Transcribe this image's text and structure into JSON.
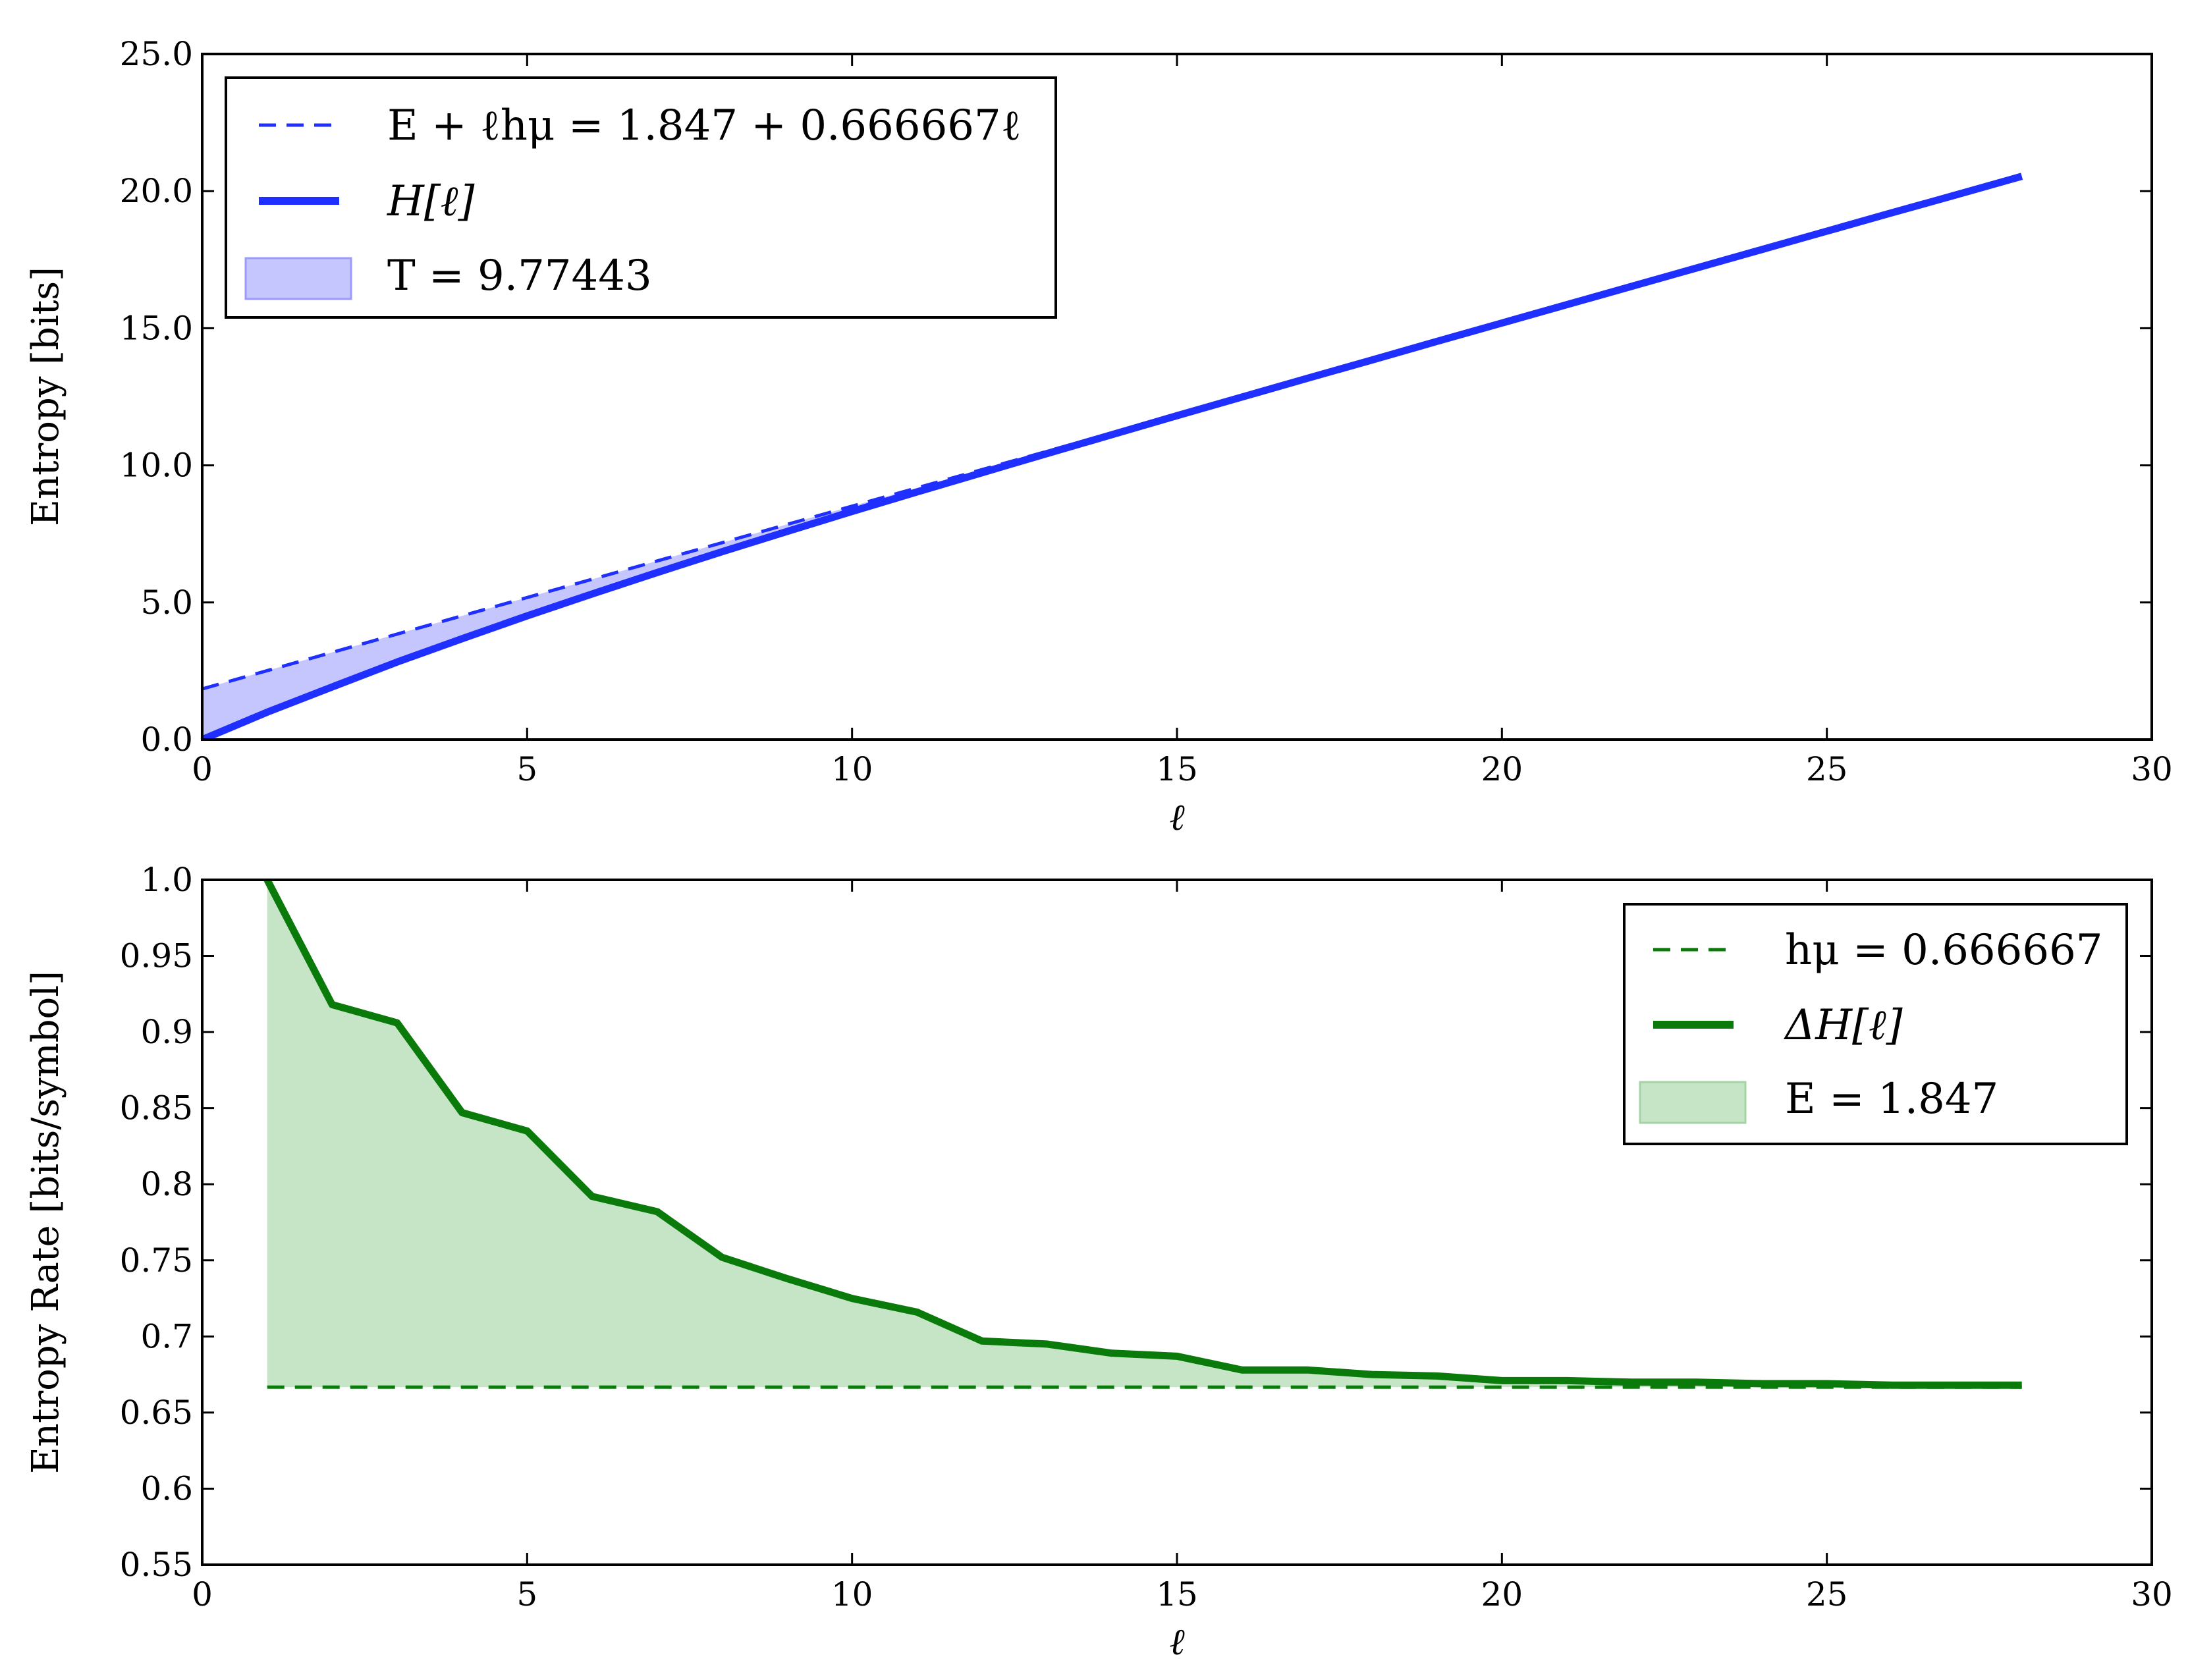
{
  "chart_data": [
    {
      "type": "line",
      "xlabel": "ℓ",
      "ylabel": "Entropy [bits]",
      "xlim": [
        0,
        30
      ],
      "ylim": [
        0,
        25
      ],
      "xticks": [
        0,
        5,
        10,
        15,
        20,
        25,
        30
      ],
      "xtick_labels": [
        "0",
        "5",
        "10",
        "15",
        "20",
        "25",
        "30"
      ],
      "yticks": [
        0,
        5,
        10,
        15,
        20,
        25
      ],
      "ytick_labels": [
        "0.0",
        "5.0",
        "10.0",
        "15.0",
        "20.0",
        "25.0"
      ],
      "legend_position": "top-left",
      "grid": false,
      "series": [
        {
          "name": "E + ℓhμ = 1.847 + 0.666667ℓ",
          "style": "dashed",
          "color": "#1f2fff",
          "x": [
            0,
            28
          ],
          "y": [
            1.847,
            20.51
          ]
        },
        {
          "name": "H[ℓ]",
          "style": "solid",
          "color": "#1f2fff",
          "x": [
            0,
            1,
            2,
            3,
            4,
            5,
            6,
            7,
            8,
            9,
            10,
            11,
            12,
            13,
            14,
            15,
            16,
            17,
            18,
            19,
            20,
            21,
            22,
            23,
            24,
            25,
            26,
            27,
            28
          ],
          "y": [
            0,
            1.0,
            1.92,
            2.83,
            3.68,
            4.51,
            5.31,
            6.09,
            6.85,
            7.59,
            8.32,
            9.03,
            9.73,
            10.43,
            11.12,
            11.81,
            12.49,
            13.17,
            13.84,
            14.52,
            15.19,
            15.86,
            16.53,
            17.2,
            17.87,
            18.54,
            19.21,
            19.87,
            20.54
          ]
        },
        {
          "name": "T = 9.77443",
          "style": "fill",
          "color": "#b3b3ff",
          "between": [
            "E + ℓhμ = 1.847 + 0.666667ℓ",
            "H[ℓ]"
          ]
        }
      ]
    },
    {
      "type": "line",
      "xlabel": "ℓ",
      "ylabel": "Entropy Rate [bits/symbol]",
      "xlim": [
        0,
        30
      ],
      "ylim": [
        0.55,
        1.0
      ],
      "xticks": [
        0,
        5,
        10,
        15,
        20,
        25,
        30
      ],
      "xtick_labels": [
        "0",
        "5",
        "10",
        "15",
        "20",
        "25",
        "30"
      ],
      "yticks": [
        0.55,
        0.6,
        0.65,
        0.7,
        0.75,
        0.8,
        0.85,
        0.9,
        0.95,
        1.0
      ],
      "ytick_labels": [
        "0.55",
        "0.6",
        "0.65",
        "0.7",
        "0.75",
        "0.8",
        "0.85",
        "0.9",
        "0.95",
        "1.0"
      ],
      "legend_position": "top-right",
      "grid": false,
      "series": [
        {
          "name": "hμ = 0.666667",
          "style": "dashed",
          "color": "#0a7a0a",
          "x": [
            1,
            28
          ],
          "y": [
            0.6667,
            0.6667
          ]
        },
        {
          "name": "ΔH[ℓ]",
          "style": "solid",
          "color": "#0a7a0a",
          "x": [
            1,
            2,
            3,
            4,
            5,
            6,
            7,
            8,
            9,
            10,
            11,
            12,
            13,
            14,
            15,
            16,
            17,
            18,
            19,
            20,
            21,
            22,
            23,
            24,
            25,
            26,
            27,
            28
          ],
          "y": [
            1.0,
            0.918,
            0.906,
            0.847,
            0.835,
            0.792,
            0.782,
            0.752,
            0.738,
            0.725,
            0.716,
            0.697,
            0.695,
            0.689,
            0.687,
            0.678,
            0.678,
            0.675,
            0.674,
            0.671,
            0.671,
            0.67,
            0.67,
            0.669,
            0.669,
            0.668,
            0.668,
            0.668
          ]
        },
        {
          "name": "E = 1.847",
          "style": "fill",
          "color": "#b8dfb8",
          "between": [
            "ΔH[ℓ]",
            "hμ = 0.666667"
          ]
        }
      ]
    }
  ]
}
